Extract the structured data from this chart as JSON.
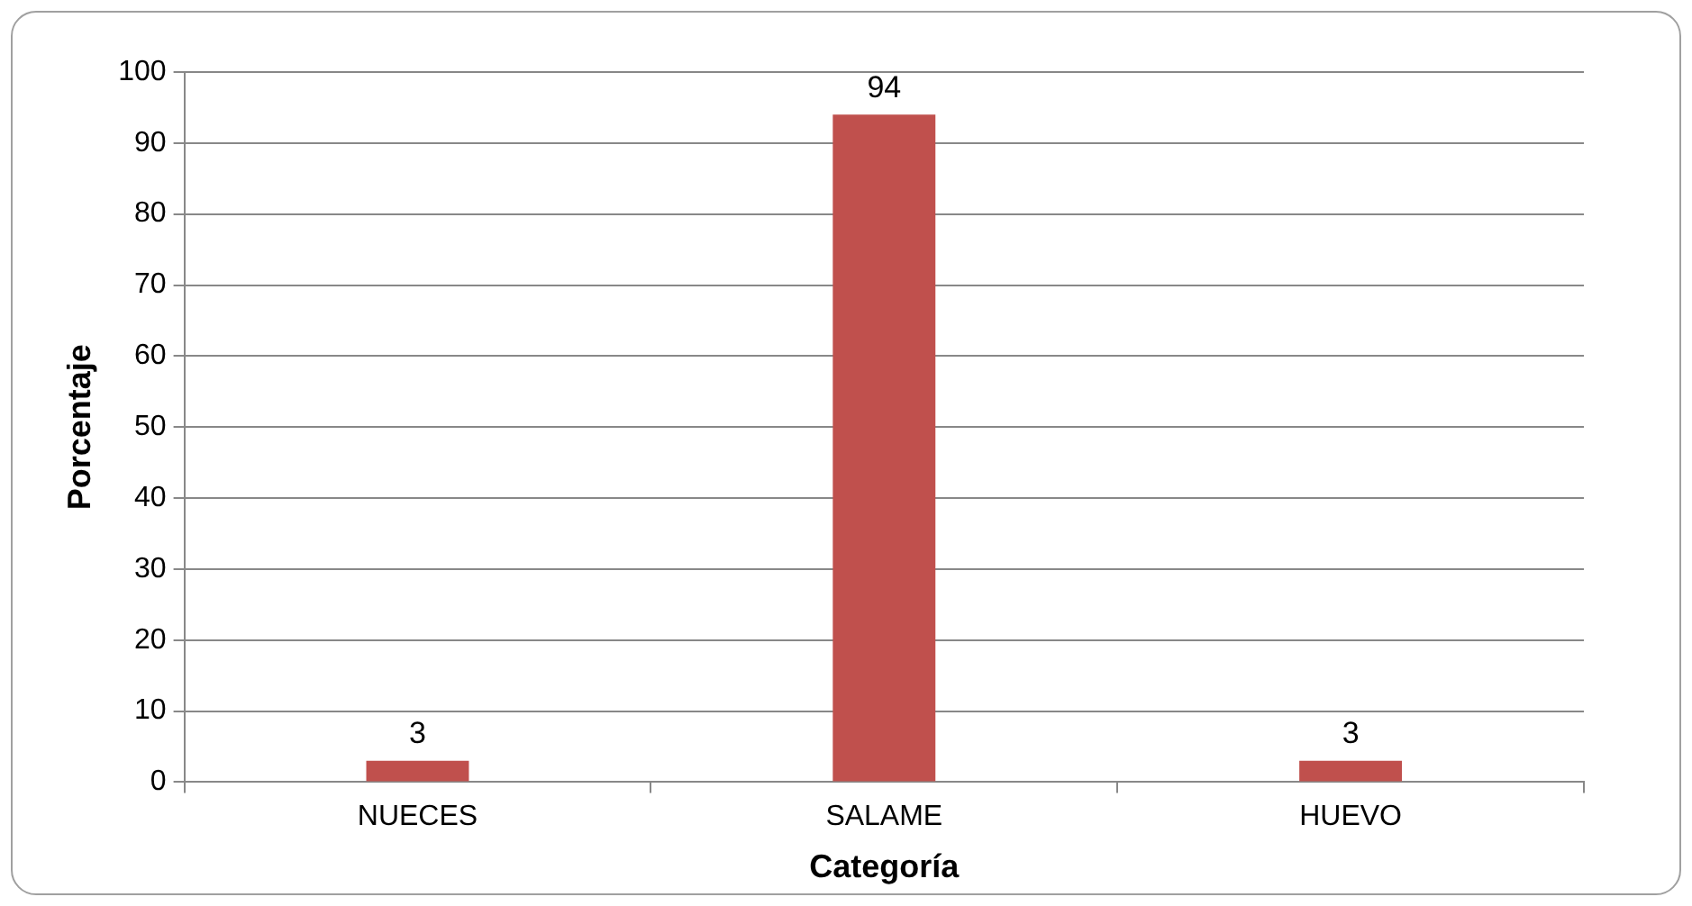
{
  "chart_data": {
    "type": "bar",
    "xlabel": "Categoría",
    "ylabel": "Porcentaje",
    "categories": [
      "NUECES",
      "SALAME",
      "HUEVO"
    ],
    "values": [
      3,
      94,
      3
    ],
    "color": "#c0504d",
    "ylim": [
      0,
      100
    ],
    "yticks": [
      0,
      10,
      20,
      30,
      40,
      50,
      60,
      70,
      80,
      90,
      100
    ],
    "grid": "y",
    "data_labels": true
  }
}
